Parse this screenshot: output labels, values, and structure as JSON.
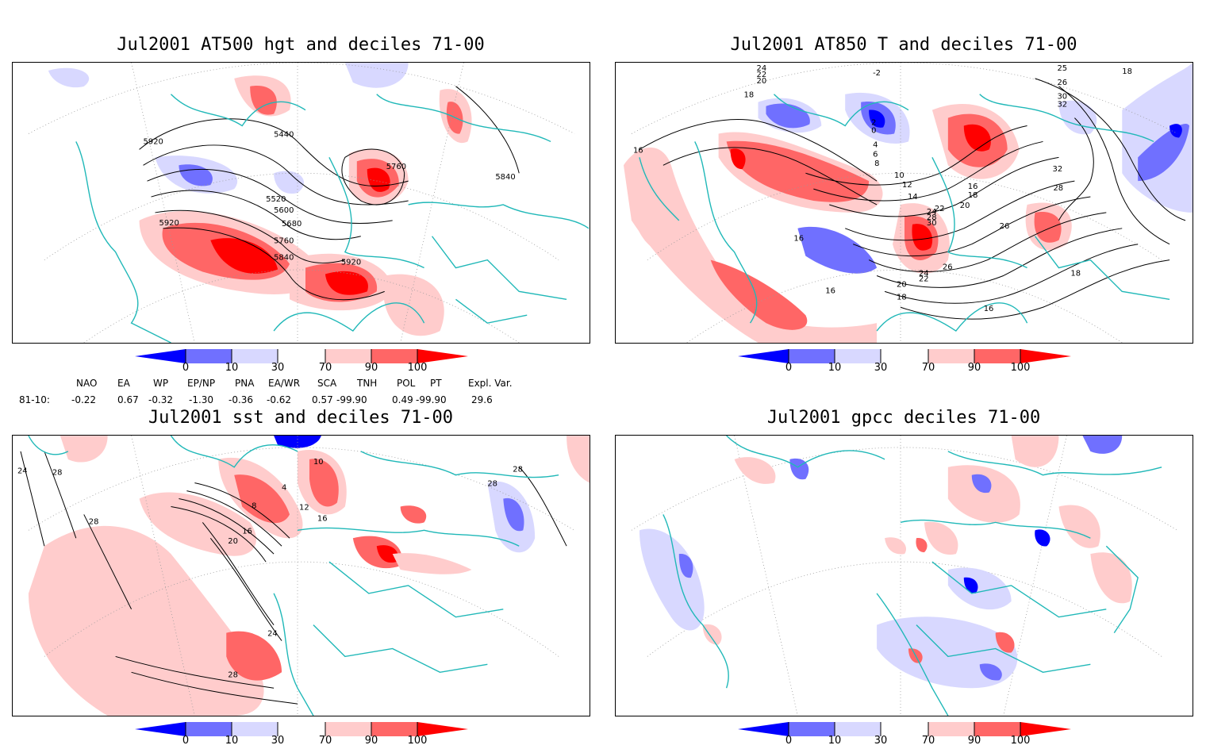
{
  "panels": [
    {
      "id": "hgt",
      "title": "Jul2001 AT500 hgt and deciles 71-00",
      "contour_labels": [
        "5920",
        "5440",
        "5760",
        "5840",
        "5520",
        "5600",
        "5680",
        "5920",
        "5760",
        "5840",
        "5920"
      ]
    },
    {
      "id": "t850",
      "title": "Jul2001 AT850 T and deciles 71-00",
      "contour_labels": [
        "24",
        "22",
        "20",
        "18",
        "-2",
        "18",
        "25",
        "26",
        "30",
        "32",
        "2",
        "0",
        "4",
        "6",
        "8",
        "10",
        "12",
        "14",
        "16",
        "18",
        "20",
        "22",
        "24",
        "28",
        "30",
        "32",
        "26",
        "28",
        "16",
        "16",
        "16",
        "26",
        "24",
        "22",
        "20",
        "18",
        "16",
        "18"
      ]
    },
    {
      "id": "sst",
      "title": "Jul2001 sst and deciles 71-00",
      "contour_labels": [
        "24",
        "28",
        "28",
        "28",
        "8",
        "12",
        "16",
        "20",
        "4",
        "10",
        "16",
        "28",
        "24",
        "28"
      ]
    },
    {
      "id": "gpcc",
      "title": "Jul2001 gpcc deciles 71-00",
      "contour_labels": []
    }
  ],
  "colorbar": {
    "ticks": [
      "0",
      "10",
      "30",
      "70",
      "90",
      "100"
    ],
    "colors": [
      "#0000ff",
      "#7070ff",
      "#d8d8ff",
      "#ffffff",
      "#ffcccc",
      "#ff6666",
      "#ff0000"
    ]
  },
  "indices": {
    "row_label": "81-10:",
    "names": [
      "NAO",
      "EA",
      "WP",
      "EP/NP",
      "PNA",
      "EA/WR",
      "SCA",
      "TNH",
      "POL",
      "PT",
      "Expl. Var."
    ],
    "values": [
      "-0.22",
      "0.67",
      "-0.32",
      "-1.30",
      "-0.36",
      "-0.62",
      "0.57",
      "-99.90",
      "0.49",
      "-99.90",
      "29.6"
    ]
  },
  "style": {
    "coast_color": "#20b8b8",
    "contour_color": "#000000",
    "grid_color": "#9a9a9a"
  }
}
